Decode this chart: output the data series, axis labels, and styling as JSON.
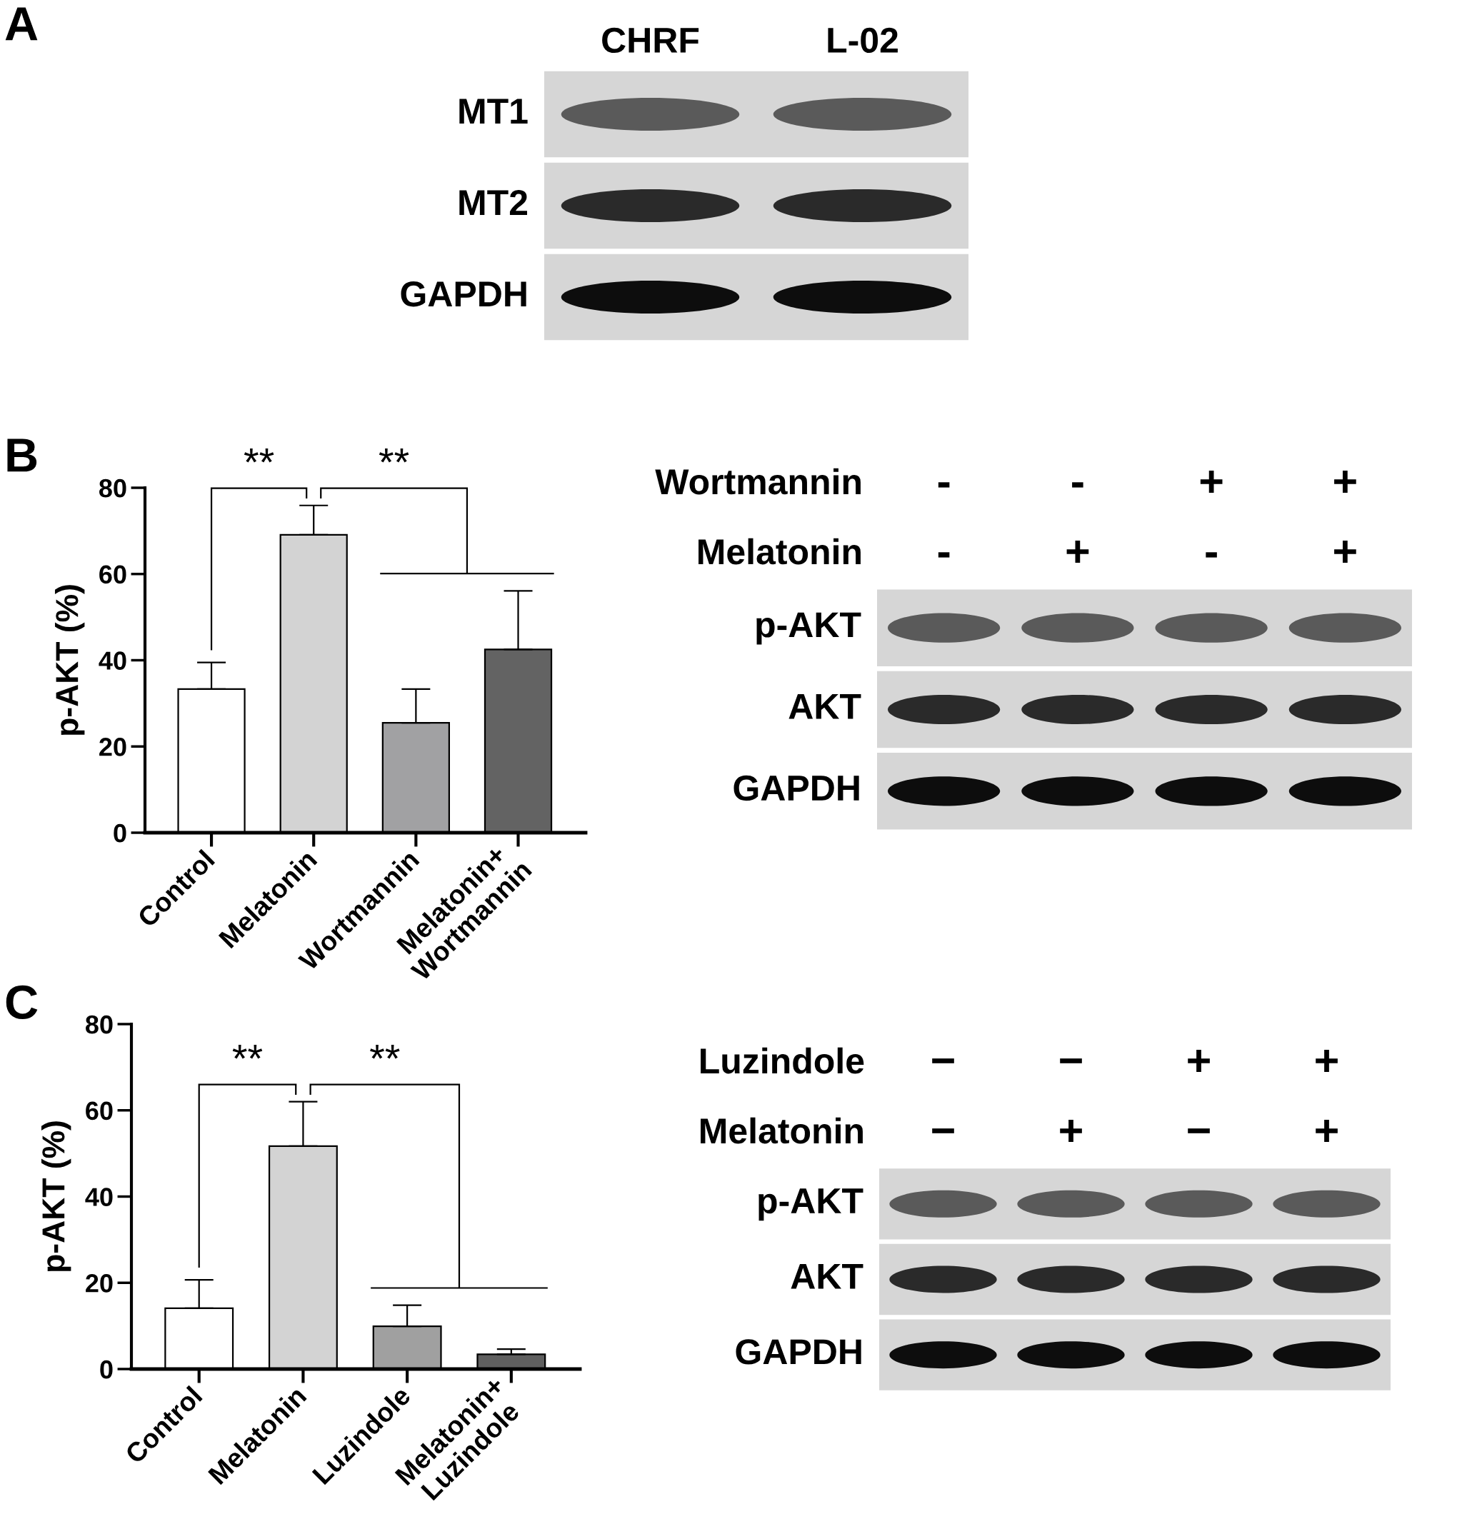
{
  "chart_data": [
    {
      "type": "other",
      "title": "A",
      "categories": [
        "CHRF",
        "L-02"
      ],
      "y_categories": [
        "MT1",
        "MT2",
        "GAPDH"
      ]
    },
    {
      "type": "bar",
      "title": "B",
      "ylabel": "p-AKT (%)",
      "categories": [
        "Control",
        "Melatonin",
        "Wortmannin",
        "Melatonin+\nWortmannin"
      ],
      "values": [
        33.3,
        69.1,
        25.5,
        42.5
      ],
      "colors": [
        "#ffffff",
        "#d3d3d3",
        "#a1a1a3",
        "#636363"
      ],
      "errors": [
        [
          33.3,
          39.5
        ],
        [
          69.1,
          75.9
        ],
        [
          25.5,
          33.3
        ],
        [
          42.5,
          56.1
        ]
      ],
      "ylim": [
        0,
        80
      ],
      "yticks": [
        0,
        20,
        40,
        60,
        80
      ],
      "annotations": [
        "**",
        "**"
      ]
    },
    {
      "type": "other",
      "categories": [
        null,
        null,
        null,
        null
      ],
      "y_categories": [
        "Wortmannin",
        "Melatonin",
        "p-AKT",
        "AKT",
        "GAPDH"
      ],
      "cell_labels": [
        [
          "-",
          "-",
          "+",
          "+"
        ],
        [
          "-",
          "+",
          "-",
          "+"
        ],
        [
          null,
          null,
          null,
          null
        ],
        [
          null,
          null,
          null,
          null
        ],
        [
          null,
          null,
          null,
          null
        ]
      ]
    },
    {
      "type": "bar",
      "title": "C",
      "ylabel": "p-AKT (%)",
      "categories": [
        "Control",
        "Melatonin",
        "Luzindole",
        "Melatonin+\nLuzindole"
      ],
      "values": [
        14.1,
        51.7,
        9.9,
        3.4
      ],
      "colors": [
        "#ffffff",
        "#d3d3d3",
        "#a0a0a0",
        "#5f5f5f"
      ],
      "errors": [
        [
          14.1,
          20.7
        ],
        [
          51.7,
          62.0
        ],
        [
          9.9,
          14.8
        ],
        [
          3.4,
          4.6
        ]
      ],
      "ylim": [
        0,
        80
      ],
      "yticks": [
        0,
        20,
        40,
        60,
        80
      ],
      "annotations": [
        "**",
        "**"
      ]
    },
    {
      "type": "other",
      "categories": [
        null,
        null,
        null,
        null
      ],
      "y_categories": [
        "Luzindole",
        "Melatonin",
        "p-AKT",
        "AKT",
        "GAPDH"
      ],
      "cell_labels": [
        [
          "−",
          "−",
          "+",
          "+"
        ],
        [
          "−",
          "+",
          "−",
          "+"
        ],
        [
          null,
          null,
          null,
          null
        ],
        [
          null,
          null,
          null,
          null
        ],
        [
          null,
          null,
          null,
          null
        ]
      ]
    }
  ]
}
